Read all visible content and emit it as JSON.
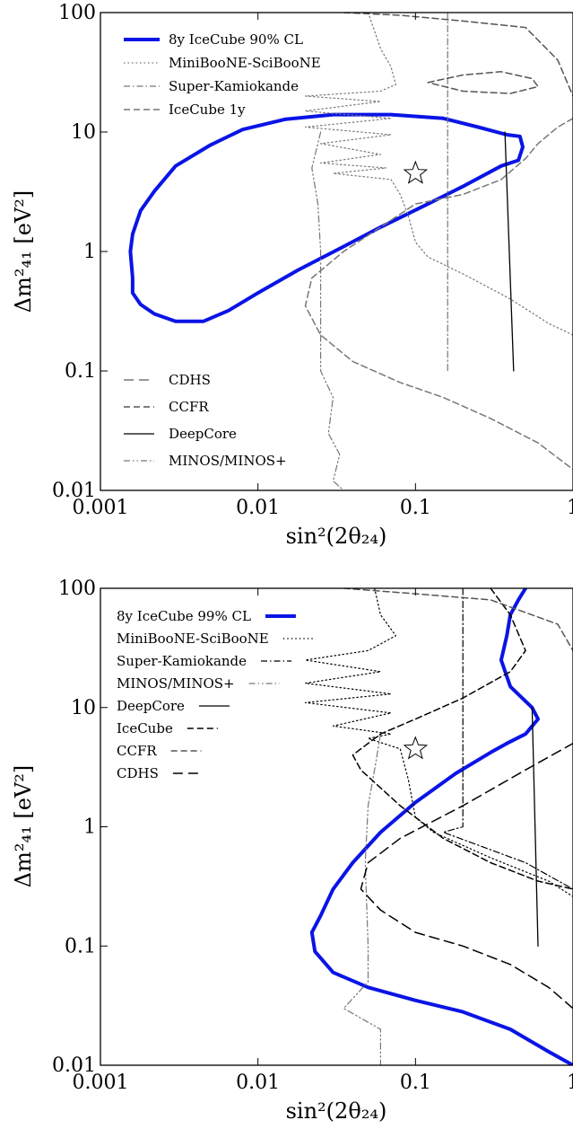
{
  "colors": {
    "icecube_main": "#0a14e6",
    "gray": "#777777",
    "dark_gray": "#555555",
    "black": "#000000",
    "best_fit_marker": "#000000"
  },
  "chart_data": [
    {
      "type": "line",
      "panel": "top",
      "xscale": "log",
      "yscale": "log",
      "xlim": [
        0.001,
        1
      ],
      "ylim": [
        0.01,
        100
      ],
      "xlabel": "sin²(2θ₂₄)",
      "ylabel": "Δm²₄₁ [eV²]",
      "xticks": [
        "0.001",
        "0.01",
        "0.1",
        "1"
      ],
      "yticks": [
        "0.01",
        "0.1",
        "1",
        "10",
        "100"
      ],
      "legend_upper_position": "top-left",
      "legend_lower_position": "bottom-left",
      "legend_upper": [
        {
          "label": "8y IceCube 90% CL",
          "style": "solid-thick",
          "color": "#0a14e6"
        },
        {
          "label": "MiniBooNE-SciBooNE",
          "style": "dotted",
          "color": "#777777"
        },
        {
          "label": "Super-Kamiokande",
          "style": "dashdot",
          "color": "#777777"
        },
        {
          "label": "IceCube 1y",
          "style": "dashed",
          "color": "#777777"
        }
      ],
      "legend_lower": [
        {
          "label": "CDHS",
          "style": "dashed-long",
          "color": "#777777"
        },
        {
          "label": "CCFR",
          "style": "dashed",
          "color": "#555555"
        },
        {
          "label": "DeepCore",
          "style": "solid",
          "color": "#000000"
        },
        {
          "label": "MINOS/MINOS+",
          "style": "dashdotdot",
          "color": "#777777"
        }
      ],
      "best_fit": {
        "x": 0.1,
        "y": 4.5
      },
      "series": [
        {
          "name": "8y IceCube 90% CL",
          "style": "solid-thick",
          "color": "#0a14e6",
          "closed": true,
          "points": [
            [
              0.0016,
              0.6
            ],
            [
              0.00155,
              1.0
            ],
            [
              0.0016,
              1.4
            ],
            [
              0.0018,
              2.2
            ],
            [
              0.0022,
              3.2
            ],
            [
              0.003,
              5.2
            ],
            [
              0.005,
              7.8
            ],
            [
              0.008,
              10.5
            ],
            [
              0.015,
              12.8
            ],
            [
              0.03,
              14
            ],
            [
              0.07,
              14
            ],
            [
              0.15,
              13
            ],
            [
              0.25,
              11
            ],
            [
              0.38,
              9.5
            ],
            [
              0.46,
              9.2
            ],
            [
              0.48,
              7.5
            ],
            [
              0.45,
              5.8
            ],
            [
              0.35,
              5.2
            ],
            [
              0.2,
              3.5
            ],
            [
              0.12,
              2.5
            ],
            [
              0.06,
              1.6
            ],
            [
              0.035,
              1.1
            ],
            [
              0.018,
              0.7
            ],
            [
              0.01,
              0.45
            ],
            [
              0.0065,
              0.32
            ],
            [
              0.0045,
              0.26
            ],
            [
              0.003,
              0.26
            ],
            [
              0.0022,
              0.3
            ],
            [
              0.0018,
              0.36
            ],
            [
              0.0016,
              0.45
            ],
            [
              0.0016,
              0.6
            ]
          ]
        },
        {
          "name": "MiniBooNE-SciBooNE",
          "style": "dotted",
          "color": "#777777",
          "closed": false,
          "points": [
            [
              0.05,
              100
            ],
            [
              0.055,
              70
            ],
            [
              0.06,
              50
            ],
            [
              0.07,
              35
            ],
            [
              0.075,
              25
            ],
            [
              0.06,
              22
            ],
            [
              0.02,
              20
            ],
            [
              0.06,
              18
            ],
            [
              0.02,
              15
            ],
            [
              0.07,
              13
            ],
            [
              0.02,
              11
            ],
            [
              0.07,
              9.5
            ],
            [
              0.025,
              8
            ],
            [
              0.06,
              6.5
            ],
            [
              0.025,
              5.5
            ],
            [
              0.065,
              5
            ],
            [
              0.03,
              4.5
            ],
            [
              0.07,
              4
            ],
            [
              0.08,
              3
            ],
            [
              0.09,
              2
            ],
            [
              0.1,
              1.2
            ],
            [
              0.12,
              0.9
            ],
            [
              0.2,
              0.65
            ],
            [
              0.4,
              0.4
            ],
            [
              0.7,
              0.25
            ],
            [
              1,
              0.2
            ]
          ]
        },
        {
          "name": "Super-Kamiokande",
          "style": "dashdot",
          "color": "#777777",
          "closed": false,
          "points": [
            [
              0.16,
              100
            ],
            [
              0.16,
              0.1
            ]
          ]
        },
        {
          "name": "IceCube 1y",
          "style": "dashed",
          "color": "#777777",
          "closed": false,
          "points": [
            [
              1,
              13
            ],
            [
              0.8,
              11
            ],
            [
              0.6,
              8
            ],
            [
              0.5,
              6
            ],
            [
              0.35,
              4
            ],
            [
              0.2,
              3
            ],
            [
              0.1,
              2.5
            ],
            [
              0.06,
              1.6
            ],
            [
              0.035,
              1.0
            ],
            [
              0.022,
              0.6
            ],
            [
              0.02,
              0.35
            ],
            [
              0.025,
              0.2
            ],
            [
              0.04,
              0.12
            ],
            [
              0.08,
              0.08
            ],
            [
              0.15,
              0.06
            ],
            [
              0.3,
              0.04
            ],
            [
              0.6,
              0.025
            ],
            [
              1,
              0.015
            ]
          ]
        },
        {
          "name": "CCFR",
          "style": "dashed",
          "color": "#555555",
          "closed": false,
          "points": [
            [
              0.035,
              100
            ],
            [
              0.08,
              95
            ],
            [
              0.2,
              85
            ],
            [
              0.5,
              75
            ],
            [
              0.8,
              40
            ],
            [
              1,
              20
            ]
          ]
        },
        {
          "name": "CCFR-loop",
          "style": "dashed",
          "color": "#555555",
          "closed": true,
          "points": [
            [
              0.12,
              26
            ],
            [
              0.2,
              30
            ],
            [
              0.35,
              32
            ],
            [
              0.55,
              28
            ],
            [
              0.6,
              24
            ],
            [
              0.4,
              21
            ],
            [
              0.2,
              22
            ],
            [
              0.12,
              26
            ]
          ]
        },
        {
          "name": "DeepCore",
          "style": "solid",
          "color": "#000000",
          "closed": false,
          "points": [
            [
              0.37,
              10
            ],
            [
              0.42,
              0.1
            ]
          ]
        },
        {
          "name": "MINOS/MINOS+",
          "style": "dashdotdot",
          "color": "#777777",
          "closed": false,
          "points": [
            [
              0.025,
              10
            ],
            [
              0.022,
              5
            ],
            [
              0.024,
              2.5
            ],
            [
              0.025,
              1
            ],
            [
              0.025,
              0.4
            ],
            [
              0.025,
              0.1
            ],
            [
              0.03,
              0.06
            ],
            [
              0.028,
              0.03
            ],
            [
              0.033,
              0.02
            ],
            [
              0.03,
              0.012
            ],
            [
              0.035,
              0.01
            ]
          ]
        }
      ]
    },
    {
      "type": "line",
      "panel": "bottom",
      "xscale": "log",
      "yscale": "log",
      "xlim": [
        0.001,
        1
      ],
      "ylim": [
        0.01,
        100
      ],
      "xlabel": "sin²(2θ₂₄)",
      "ylabel": "Δm²₄₁ [eV²]",
      "xticks": [
        "0.001",
        "0.01",
        "0.1",
        "1"
      ],
      "yticks": [
        "0.01",
        "0.1",
        "1",
        "10",
        "100"
      ],
      "legend_position": "top-left",
      "legend": [
        {
          "label": "8y IceCube 99% CL",
          "style": "solid-thick",
          "color": "#0a14e6"
        },
        {
          "label": "MiniBooNE-SciBooNE",
          "style": "dotted",
          "color": "#000000"
        },
        {
          "label": "Super-Kamiokande",
          "style": "dashdot",
          "color": "#000000"
        },
        {
          "label": "MINOS/MINOS+",
          "style": "dashdotdot",
          "color": "#777777"
        },
        {
          "label": "DeepCore",
          "style": "solid",
          "color": "#000000"
        },
        {
          "label": "IceCube",
          "style": "dashed",
          "color": "#000000"
        },
        {
          "label": "CCFR",
          "style": "dashed",
          "color": "#555555"
        },
        {
          "label": "CDHS",
          "style": "dashed-long",
          "color": "#000000"
        }
      ],
      "best_fit": {
        "x": 0.1,
        "y": 4.5
      },
      "series": [
        {
          "name": "8y IceCube 99% CL",
          "style": "solid-thick",
          "color": "#0a14e6",
          "closed": false,
          "points": [
            [
              0.5,
              100
            ],
            [
              0.45,
              80
            ],
            [
              0.4,
              60
            ],
            [
              0.38,
              40
            ],
            [
              0.35,
              25
            ],
            [
              0.4,
              15
            ],
            [
              0.55,
              10
            ],
            [
              0.6,
              8
            ],
            [
              0.5,
              6
            ],
            [
              0.38,
              5
            ],
            [
              0.3,
              4.2
            ],
            [
              0.18,
              2.8
            ],
            [
              0.1,
              1.6
            ],
            [
              0.06,
              0.9
            ],
            [
              0.04,
              0.5
            ],
            [
              0.03,
              0.3
            ],
            [
              0.025,
              0.18
            ],
            [
              0.022,
              0.13
            ],
            [
              0.023,
              0.09
            ],
            [
              0.03,
              0.06
            ],
            [
              0.05,
              0.045
            ],
            [
              0.1,
              0.035
            ],
            [
              0.2,
              0.028
            ],
            [
              0.4,
              0.02
            ],
            [
              0.7,
              0.013
            ],
            [
              1,
              0.01
            ]
          ]
        },
        {
          "name": "MiniBooNE-SciBooNE",
          "style": "dotted",
          "color": "#000000",
          "closed": false,
          "points": [
            [
              0.055,
              100
            ],
            [
              0.06,
              60
            ],
            [
              0.075,
              40
            ],
            [
              0.05,
              30
            ],
            [
              0.02,
              25
            ],
            [
              0.06,
              20
            ],
            [
              0.02,
              16
            ],
            [
              0.07,
              13
            ],
            [
              0.02,
              11
            ],
            [
              0.07,
              9
            ],
            [
              0.03,
              7
            ],
            [
              0.07,
              6
            ],
            [
              0.05,
              5.5
            ],
            [
              0.08,
              4.5
            ],
            [
              0.09,
              2.5
            ],
            [
              0.1,
              1.2
            ],
            [
              0.13,
              0.9
            ],
            [
              0.3,
              0.55
            ],
            [
              0.7,
              0.35
            ],
            [
              1,
              0.26
            ]
          ]
        },
        {
          "name": "Super-Kamiokande",
          "style": "dashdot",
          "color": "#000000",
          "closed": false,
          "points": [
            [
              0.2,
              100
            ],
            [
              0.2,
              1.0
            ],
            [
              0.15,
              0.9
            ],
            [
              0.5,
              0.5
            ],
            [
              1,
              0.3
            ]
          ]
        },
        {
          "name": "MINOS/MINOS+",
          "style": "dashdotdot",
          "color": "#777777",
          "closed": false,
          "points": [
            [
              0.06,
              6
            ],
            [
              0.055,
              3
            ],
            [
              0.05,
              1.5
            ],
            [
              0.048,
              0.5
            ],
            [
              0.05,
              0.1
            ],
            [
              0.05,
              0.05
            ],
            [
              0.035,
              0.03
            ],
            [
              0.06,
              0.02
            ],
            [
              0.06,
              0.01
            ]
          ]
        },
        {
          "name": "DeepCore",
          "style": "solid",
          "color": "#000000",
          "closed": false,
          "points": [
            [
              0.55,
              10
            ],
            [
              0.6,
              0.1
            ]
          ]
        },
        {
          "name": "IceCube",
          "style": "dashed",
          "color": "#000000",
          "closed": false,
          "points": [
            [
              0.3,
              100
            ],
            [
              0.4,
              60
            ],
            [
              0.5,
              30
            ],
            [
              0.4,
              20
            ],
            [
              0.2,
              12
            ],
            [
              0.1,
              8
            ],
            [
              0.06,
              6
            ],
            [
              0.04,
              4
            ],
            [
              0.045,
              3
            ],
            [
              0.08,
              1.5
            ],
            [
              0.15,
              0.8
            ],
            [
              0.3,
              0.5
            ],
            [
              0.6,
              0.35
            ],
            [
              1,
              0.3
            ]
          ]
        },
        {
          "name": "CCFR",
          "style": "dashed",
          "color": "#555555",
          "closed": false,
          "points": [
            [
              0.035,
              100
            ],
            [
              0.1,
              90
            ],
            [
              0.3,
              80
            ],
            [
              0.8,
              50
            ],
            [
              1,
              30
            ]
          ]
        },
        {
          "name": "CDHS",
          "style": "dashed-long",
          "color": "#000000",
          "closed": false,
          "points": [
            [
              1,
              0.03
            ],
            [
              0.7,
              0.045
            ],
            [
              0.4,
              0.07
            ],
            [
              0.2,
              0.1
            ],
            [
              0.1,
              0.13
            ],
            [
              0.06,
              0.2
            ],
            [
              0.045,
              0.3
            ],
            [
              0.05,
              0.5
            ],
            [
              0.08,
              0.8
            ],
            [
              0.2,
              1.5
            ],
            [
              0.5,
              3
            ],
            [
              1,
              5
            ]
          ]
        }
      ]
    }
  ]
}
